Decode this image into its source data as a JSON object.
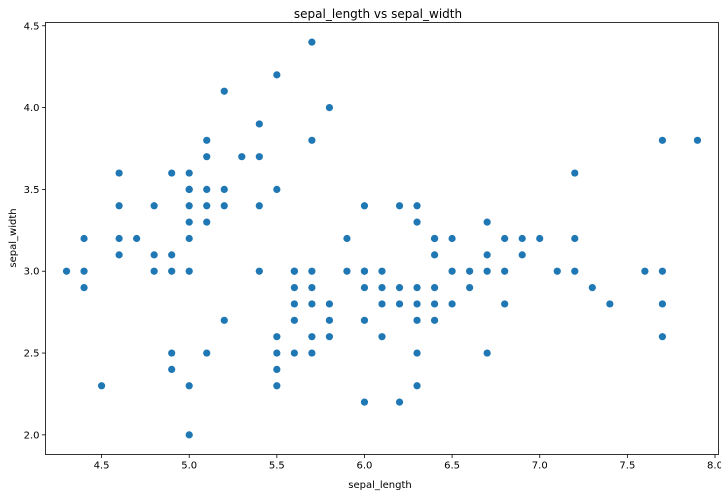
{
  "chart_data": {
    "type": "scatter",
    "title": "sepal_length vs sepal_width",
    "xlabel": "sepal_length",
    "ylabel": "sepal_width",
    "xlim": [
      4.18,
      8.02
    ],
    "ylim": [
      1.88,
      4.52
    ],
    "xticks": [
      4.5,
      5.0,
      5.5,
      6.0,
      6.5,
      7.0,
      7.5,
      8.0
    ],
    "xtick_labels": [
      "4.5",
      "5.0",
      "5.5",
      "6.0",
      "6.5",
      "7.0",
      "7.5",
      "8.0"
    ],
    "yticks": [
      2.0,
      2.5,
      3.0,
      3.5,
      4.0,
      4.5
    ],
    "ytick_labels": [
      "2.0",
      "2.5",
      "3.0",
      "3.5",
      "4.0",
      "4.5"
    ],
    "grid": false,
    "marker_color": "#1f77b4",
    "series": [
      {
        "x": [
          4.3,
          4.4,
          4.4,
          4.4,
          4.5,
          4.6,
          4.6,
          4.6,
          4.6,
          4.7,
          4.8,
          4.8,
          4.8,
          4.9,
          4.9,
          4.9,
          4.9,
          4.9,
          5.0,
          5.0,
          5.0,
          5.0,
          5.0,
          5.0,
          5.0,
          5.0,
          5.0,
          5.1,
          5.1,
          5.1,
          5.1,
          5.1,
          5.1,
          5.2,
          5.2,
          5.2,
          5.2,
          5.3,
          5.4,
          5.4,
          5.4,
          5.4,
          5.5,
          5.5,
          5.5,
          5.5,
          5.5,
          5.5,
          5.6,
          5.6,
          5.6,
          5.6,
          5.6,
          5.6,
          5.7,
          5.7,
          5.7,
          5.7,
          5.7,
          5.7,
          5.7,
          5.8,
          5.8,
          5.8,
          5.8,
          5.9,
          5.9,
          6.0,
          6.0,
          6.0,
          6.0,
          6.0,
          6.0,
          6.1,
          6.1,
          6.1,
          6.1,
          6.2,
          6.2,
          6.2,
          6.2,
          6.3,
          6.3,
          6.3,
          6.3,
          6.3,
          6.3,
          6.3,
          6.4,
          6.4,
          6.4,
          6.4,
          6.4,
          6.4,
          6.5,
          6.5,
          6.5,
          6.6,
          6.6,
          6.7,
          6.7,
          6.7,
          6.7,
          6.8,
          6.8,
          6.8,
          6.9,
          6.9,
          7.0,
          7.1,
          7.2,
          7.2,
          7.2,
          7.3,
          7.4,
          7.6,
          7.7,
          7.7,
          7.7,
          7.7,
          7.9
        ],
        "y": [
          3.0,
          2.9,
          3.0,
          3.2,
          2.3,
          3.1,
          3.2,
          3.4,
          3.6,
          3.2,
          3.0,
          3.1,
          3.4,
          2.4,
          2.5,
          3.0,
          3.1,
          3.6,
          2.0,
          2.3,
          3.0,
          3.2,
          3.3,
          3.4,
          3.5,
          3.6,
          3.5,
          2.5,
          3.3,
          3.4,
          3.5,
          3.7,
          3.8,
          2.7,
          3.4,
          3.5,
          4.1,
          3.7,
          3.0,
          3.4,
          3.7,
          3.9,
          2.3,
          2.4,
          2.5,
          2.6,
          3.5,
          4.2,
          2.5,
          2.7,
          2.8,
          2.9,
          3.0,
          3.0,
          2.5,
          2.6,
          2.8,
          2.9,
          3.0,
          3.8,
          4.4,
          2.6,
          2.7,
          2.8,
          4.0,
          3.0,
          3.2,
          2.2,
          2.7,
          2.9,
          3.0,
          3.4,
          3.0,
          2.6,
          2.8,
          2.9,
          3.0,
          2.2,
          2.8,
          2.9,
          3.4,
          2.3,
          2.5,
          2.7,
          2.8,
          2.9,
          3.3,
          3.4,
          2.7,
          2.8,
          2.9,
          3.1,
          3.2,
          3.2,
          2.8,
          3.0,
          3.2,
          2.9,
          3.0,
          2.5,
          3.0,
          3.1,
          3.3,
          2.8,
          3.0,
          3.2,
          3.1,
          3.2,
          3.2,
          3.0,
          3.0,
          3.2,
          3.6,
          2.9,
          2.8,
          3.0,
          2.6,
          2.8,
          3.0,
          3.8,
          3.8
        ]
      }
    ]
  }
}
